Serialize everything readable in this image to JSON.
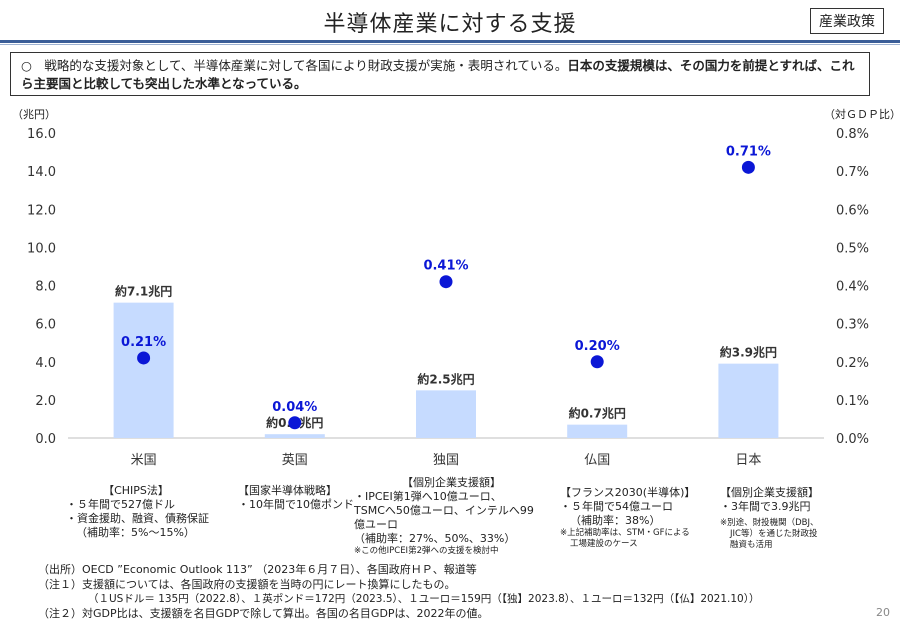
{
  "header": {
    "title": "半導体産業に対する支援",
    "category": "産業政策"
  },
  "summary": {
    "normal": "○　戦略的な支援対象として、半導体産業に対して各国により財政支援が実施・表明されている。",
    "bold": "日本の支援規模は、その国力を前提とすれば、これら主要国と比較しても突出した水準となっている。"
  },
  "chart_data": {
    "type": "bar",
    "categories": [
      "米国",
      "英国",
      "独国",
      "仏国",
      "日本"
    ],
    "left_axis": {
      "label": "（兆円）",
      "range": [
        0,
        16
      ],
      "ticks": [
        "0.0",
        "2.0",
        "4.0",
        "6.0",
        "8.0",
        "10.0",
        "12.0",
        "14.0",
        "16.0"
      ]
    },
    "right_axis": {
      "label": "（対ＧＤＰ比）",
      "range": [
        0,
        0.8
      ],
      "ticks": [
        "0.0%",
        "0.1%",
        "0.2%",
        "0.3%",
        "0.4%",
        "0.5%",
        "0.6%",
        "0.7%",
        "0.8%"
      ]
    },
    "bars": {
      "values": [
        7.1,
        0.2,
        2.5,
        0.7,
        3.9
      ],
      "labels": [
        "約7.1兆円",
        "約0.2兆円",
        "約2.5兆円",
        "約0.7兆円",
        "約3.9兆円"
      ],
      "color": "#c6dbff"
    },
    "points": {
      "values": [
        0.21,
        0.04,
        0.41,
        0.2,
        0.71
      ],
      "labels": [
        "0.21%",
        "0.04%",
        "0.41%",
        "0.20%",
        "0.71%"
      ],
      "color": "#0b17d6"
    },
    "grid": false
  },
  "notes": {
    "us": [
      "【CHIPS法】",
      "・５年間で527億ドル",
      "・資金援助、融資、債務保証",
      "（補助率：5%～15%）"
    ],
    "uk": [
      "【国家半導体戦略】",
      "・10年間で10億ポンド"
    ],
    "de": [
      "【個別企業支援額】",
      "・IPCEI第1弾へ10億ユーロ、",
      "TSMCへ50億ユーロ、インテルへ99",
      "億ユーロ",
      "（補助率：27%、50%、33%）"
    ],
    "de_small": "※この他IPCEI第2弾への支援を検討中",
    "fr": [
      "【フランス2030(半導体)】",
      "・５年間で54億ユーロ",
      "（補助率：38%）"
    ],
    "fr_small": [
      "※上記補助率は、STM・GFによる",
      "工場建設のケース"
    ],
    "jp": [
      "【個別企業支援額】",
      "・3年間で3.9兆円"
    ],
    "jp_small": [
      "※別途、財投機関（DBJ、",
      "JIC等）を通じた財政投",
      "融資も活用"
    ]
  },
  "sources": [
    "（出所）OECD ”Economic Outlook 113” （2023年６月７日）、各国政府ＨＰ、報道等",
    "（注１）支援額については、各国政府の支援額を当時の円にレート換算にしたもの。",
    "（１USドル＝ 135円（2022.8）、１英ポンド＝172円（2023.5）、１ユーロ＝159円（【独】2023.8）、１ユーロ＝132円（【仏】2021.10））",
    "（注２）対GDP比は、支援額を名目GDPで除して算出。各国の名目GDPは、2022年の値。"
  ],
  "page_number": "20"
}
